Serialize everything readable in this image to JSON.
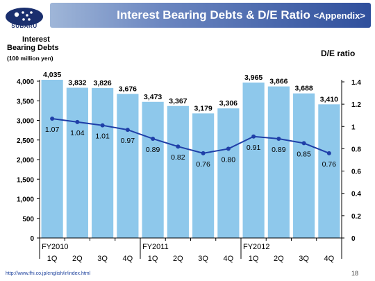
{
  "header": {
    "logo_text": "SUBARU",
    "title_main": "Interest Bearing Debts & D/E Ratio",
    "title_sub": "<Appendix>"
  },
  "colors": {
    "bar": "#8ec8eb",
    "line": "#1f3fa8",
    "title_gradient_start": "#9fb6d8",
    "title_gradient_end": "#2f4f9c"
  },
  "chart_data": {
    "type": "bar",
    "left_axis_label_line1": "Interest",
    "left_axis_label_line2": "Bearing Debts",
    "left_axis_unit": "(100 million yen)",
    "right_axis_label": "D/E ratio",
    "categories": [
      "1Q",
      "2Q",
      "3Q",
      "4Q",
      "1Q",
      "2Q",
      "3Q",
      "4Q",
      "1Q",
      "2Q",
      "3Q",
      "4Q"
    ],
    "fiscal_years": [
      {
        "label": "FY2010",
        "start_index": 0
      },
      {
        "label": "FY2011",
        "start_index": 4
      },
      {
        "label": "FY2012",
        "start_index": 8
      }
    ],
    "bar_values": [
      4035,
      3832,
      3826,
      3676,
      3473,
      3367,
      3179,
      3306,
      3965,
      3866,
      3688,
      3410
    ],
    "bar_labels": [
      "4,035",
      "3,832",
      "3,826",
      "3,676",
      "3,473",
      "3,367",
      "3,179",
      "3,306",
      "3,965",
      "3,866",
      "3,688",
      "3,410"
    ],
    "line_values": [
      1.07,
      1.04,
      1.01,
      0.97,
      0.89,
      0.82,
      0.76,
      0.8,
      0.91,
      0.89,
      0.85,
      0.76
    ],
    "line_labels": [
      "1.07",
      "1.04",
      "1.01",
      "0.97",
      "0.89",
      "0.82",
      "0.76",
      "0.80",
      "0.91",
      "0.89",
      "0.85",
      "0.76"
    ],
    "ylim_left": [
      0,
      4000
    ],
    "ylim_right": [
      0,
      1.6
    ],
    "left_ticks": [
      "0",
      "500",
      "1,000",
      "1,500",
      "2,000",
      "2,500",
      "3,000",
      "3,500",
      "4,000"
    ],
    "left_tick_values": [
      0,
      500,
      1000,
      1500,
      2000,
      2500,
      3000,
      3500,
      4000
    ],
    "right_ticks": [
      "0",
      "0.2",
      "0.4",
      "0.6",
      "0.8",
      "1",
      "1.2",
      "1.4"
    ],
    "right_tick_values": [
      0,
      0.2,
      0.4,
      0.6,
      0.8,
      1.0,
      1.2,
      1.4
    ],
    "grid": false
  },
  "footer": {
    "url": "http://www.fhi.co.jp/english/ir/index.html",
    "page_number": "18"
  }
}
